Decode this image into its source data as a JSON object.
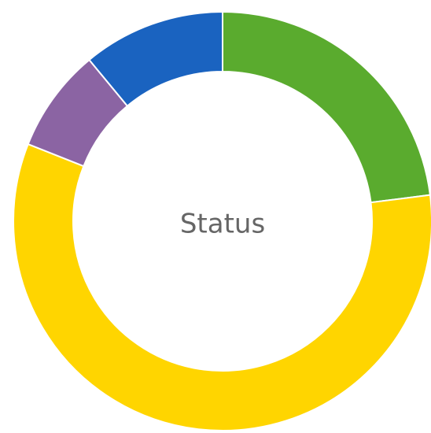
{
  "chart_data": {
    "type": "donut",
    "center_label": "Status",
    "values": [
      23,
      58,
      8,
      11
    ],
    "colors": [
      "#5aab2e",
      "#ffd500",
      "#8b64a3",
      "#1a63c0"
    ]
  }
}
